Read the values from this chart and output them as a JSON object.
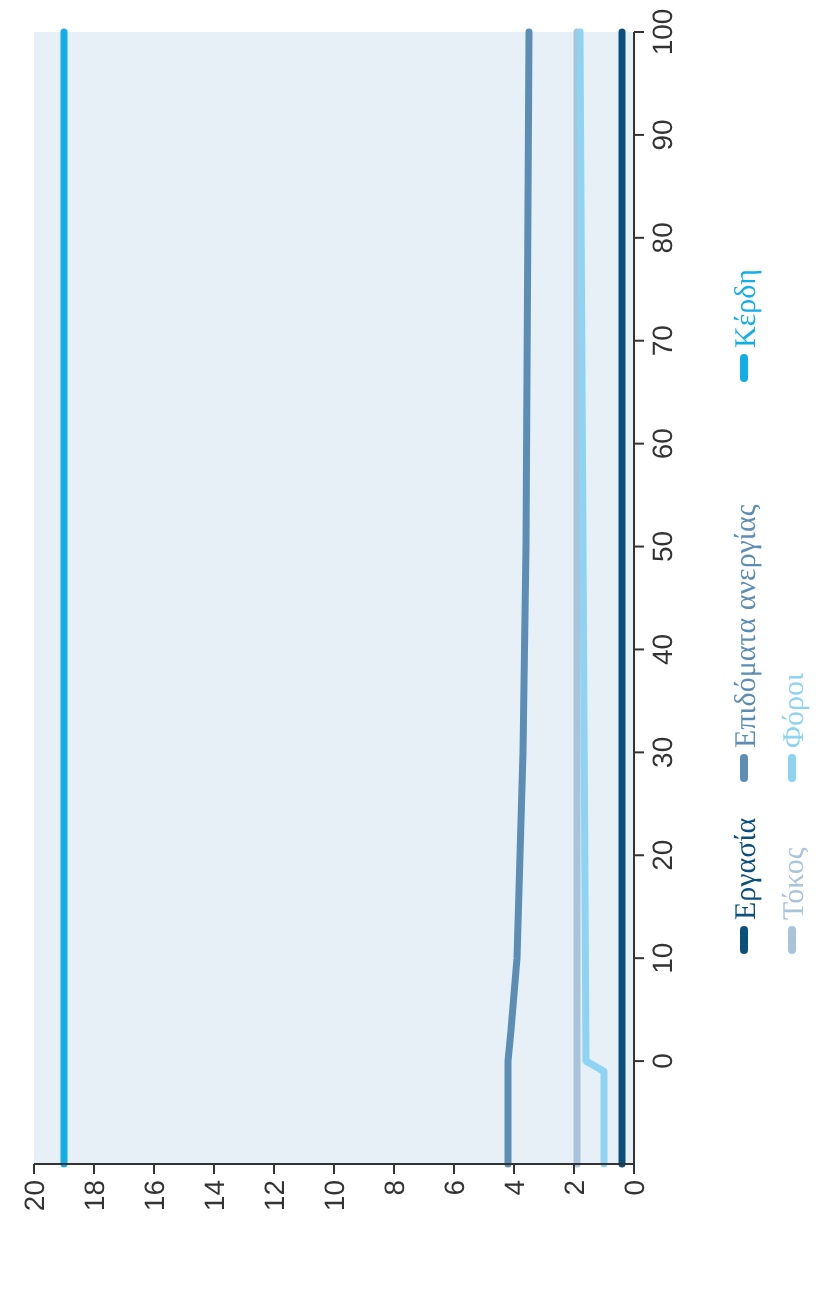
{
  "chart_data": {
    "type": "line",
    "xlim": [
      20,
      0
    ],
    "xticks": [
      0,
      2,
      4,
      6,
      8,
      10,
      12,
      14,
      16,
      18,
      20
    ],
    "ylim": [
      -10,
      100
    ],
    "yticks": [
      0,
      10,
      20,
      30,
      40,
      50,
      60,
      70,
      80,
      90,
      100
    ],
    "grid": false,
    "legend": "right",
    "series": [
      {
        "name": "Εργασία",
        "color": "#0b4f7c",
        "x": [
          0.4,
          0.4
        ],
        "values": [
          -10,
          100
        ]
      },
      {
        "name": "Τόκος",
        "color": "#a9c3db",
        "x": [
          1.9,
          1.9,
          1.9
        ],
        "values": [
          -10,
          0,
          100
        ]
      },
      {
        "name": "Επιδόματα ανεργίας",
        "color": "#5b8db5",
        "x": [
          4.2,
          4.2,
          4.1,
          3.9,
          3.8,
          3.7,
          3.6,
          3.5
        ],
        "values": [
          -10,
          0,
          3,
          10,
          20,
          30,
          50,
          100
        ]
      },
      {
        "name": "Φόροι",
        "color": "#8fd3f2",
        "x": [
          1,
          1,
          1.6,
          1.8
        ],
        "values": [
          -10,
          -1,
          0,
          100
        ]
      },
      {
        "name": "Κέρδη",
        "color": "#12aee8",
        "x": [
          19,
          19
        ],
        "values": [
          -10,
          100
        ]
      }
    ]
  }
}
